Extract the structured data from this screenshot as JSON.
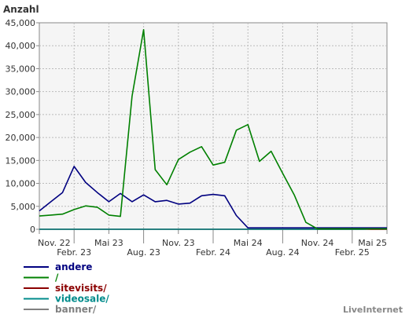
{
  "chart_data": {
    "type": "line",
    "title": "",
    "ylabel": "Anzahl",
    "xlabel": "",
    "ylim": [
      0,
      45000
    ],
    "yticks": [
      0,
      5000,
      10000,
      15000,
      20000,
      25000,
      30000,
      35000,
      40000,
      45000
    ],
    "ytick_labels": [
      "0",
      "5,000",
      "10,000",
      "15,000",
      "20,000",
      "25,000",
      "30,000",
      "35,000",
      "40,000",
      "45,000"
    ],
    "xtick_labels": [
      "Nov. 22",
      "Febr. 23",
      "Mai 23",
      "Aug. 23",
      "Nov. 23",
      "Febr. 24",
      "Mai 24",
      "Aug. 24",
      "Nov. 24",
      "Febr. 25",
      "Mai 25"
    ],
    "x_range": [
      "2022-11",
      "2025-05"
    ],
    "grid": true,
    "legend_position": "bottom-left",
    "credit": "LiveInternet",
    "x": [
      "2022-11",
      "2022-12",
      "2023-01",
      "2023-02",
      "2023-03",
      "2023-04",
      "2023-05",
      "2023-06",
      "2023-07",
      "2023-08",
      "2023-09",
      "2023-10",
      "2023-11",
      "2023-12",
      "2024-01",
      "2024-02",
      "2024-03",
      "2024-04",
      "2024-05",
      "2024-06",
      "2024-07",
      "2024-08",
      "2024-09",
      "2024-10",
      "2024-11",
      "2024-12",
      "2025-01",
      "2025-02",
      "2025-03",
      "2025-04",
      "2025-05"
    ],
    "series": [
      {
        "name": "andere",
        "color": "#000080",
        "values": [
          4000,
          6000,
          8000,
          13700,
          10200,
          8000,
          6000,
          7800,
          6000,
          7500,
          6000,
          6300,
          5500,
          5700,
          7300,
          7600,
          7300,
          3000,
          300,
          300,
          300,
          300,
          300,
          300,
          300,
          300,
          300,
          300,
          300,
          300,
          300
        ]
      },
      {
        "name": "/",
        "color": "#008000",
        "values": [
          2900,
          3100,
          3300,
          4300,
          5100,
          4800,
          3100,
          2800,
          29000,
          43500,
          13000,
          9700,
          15200,
          16800,
          18000,
          14000,
          14600,
          21600,
          22800,
          14800,
          17000,
          12200,
          7500,
          1500,
          100,
          100,
          100,
          100,
          100,
          100,
          100
        ]
      },
      {
        "name": "sitevisits/",
        "color": "#8b0000",
        "values": [
          0,
          0,
          0,
          0,
          0,
          0,
          0,
          0,
          0,
          0,
          0,
          0,
          0,
          0,
          0,
          0,
          0,
          0,
          0,
          0,
          0,
          0,
          0,
          0,
          0,
          0,
          0,
          0,
          0,
          0,
          0
        ]
      },
      {
        "name": "videosale/",
        "color": "#008b8b",
        "values": [
          0,
          0,
          0,
          0,
          0,
          0,
          0,
          0,
          0,
          0,
          0,
          0,
          0,
          0,
          0,
          0,
          0,
          0,
          0,
          0,
          0,
          0,
          0,
          0,
          0,
          0,
          0,
          0,
          0,
          200,
          100
        ]
      },
      {
        "name": "banner/",
        "color": "#808080",
        "values": [
          0,
          0,
          0,
          0,
          0,
          0,
          0,
          0,
          0,
          0,
          0,
          0,
          0,
          0,
          0,
          0,
          0,
          0,
          0,
          0,
          0,
          0,
          0,
          0,
          0,
          0,
          0,
          0,
          0,
          0,
          0
        ]
      }
    ]
  }
}
